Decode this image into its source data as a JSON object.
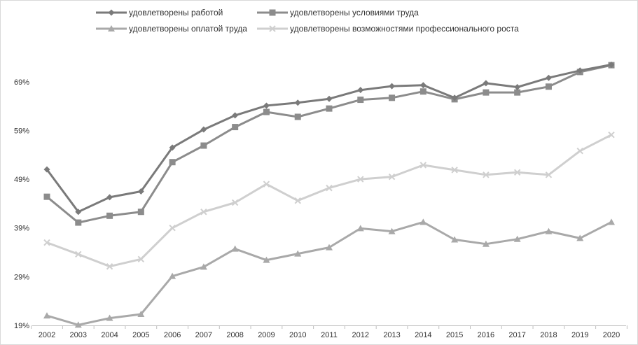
{
  "chart_data": {
    "type": "line",
    "title": "",
    "xlabel": "",
    "ylabel": "",
    "ylim": [
      19,
      74
    ],
    "grid": false,
    "legend_position": "top",
    "x": [
      "2002",
      "2003",
      "2004",
      "2005",
      "2006",
      "2007",
      "2008",
      "2009",
      "2010",
      "2011",
      "2012",
      "2013",
      "2014",
      "2015",
      "2016",
      "2017",
      "2018",
      "2019",
      "2020"
    ],
    "y_ticks": [
      19,
      29,
      39,
      49,
      59,
      69
    ],
    "y_tick_labels": [
      "19%",
      "29%",
      "39%",
      "49%",
      "59%",
      "69%"
    ],
    "series": [
      {
        "name": "удовлетворены работой",
        "color": "#7a7a7a",
        "marker": "diamond",
        "values": [
          51.0,
          42.3,
          45.3,
          46.5,
          55.5,
          59.2,
          62.1,
          64.1,
          64.7,
          65.5,
          67.3,
          68.1,
          68.3,
          65.7,
          68.7,
          67.9,
          69.8,
          71.3,
          72.5
        ]
      },
      {
        "name": "удовлетворены условиями труда",
        "color": "#8c8c8c",
        "marker": "square",
        "values": [
          45.4,
          40.1,
          41.5,
          42.3,
          52.5,
          55.9,
          59.7,
          62.8,
          61.8,
          63.5,
          65.3,
          65.7,
          67.0,
          65.4,
          66.8,
          66.8,
          68.0,
          71.0,
          72.4
        ]
      },
      {
        "name": "удовлетворены оплатой труда",
        "color": "#a9a9a9",
        "marker": "triangle",
        "values": [
          21.0,
          19.1,
          20.5,
          21.3,
          29.1,
          31.0,
          34.7,
          32.4,
          33.7,
          35.0,
          38.9,
          38.3,
          40.2,
          36.6,
          35.7,
          36.7,
          38.3,
          36.9,
          40.2
        ]
      },
      {
        "name": "удовлетворены возможностями профессионального роста",
        "color": "#cfcfcf",
        "marker": "x",
        "values": [
          36.0,
          33.6,
          31.1,
          32.6,
          39.0,
          42.3,
          44.2,
          48.0,
          44.6,
          47.2,
          49.0,
          49.5,
          51.9,
          50.9,
          49.9,
          50.4,
          49.9,
          54.8,
          58.1
        ]
      }
    ]
  }
}
